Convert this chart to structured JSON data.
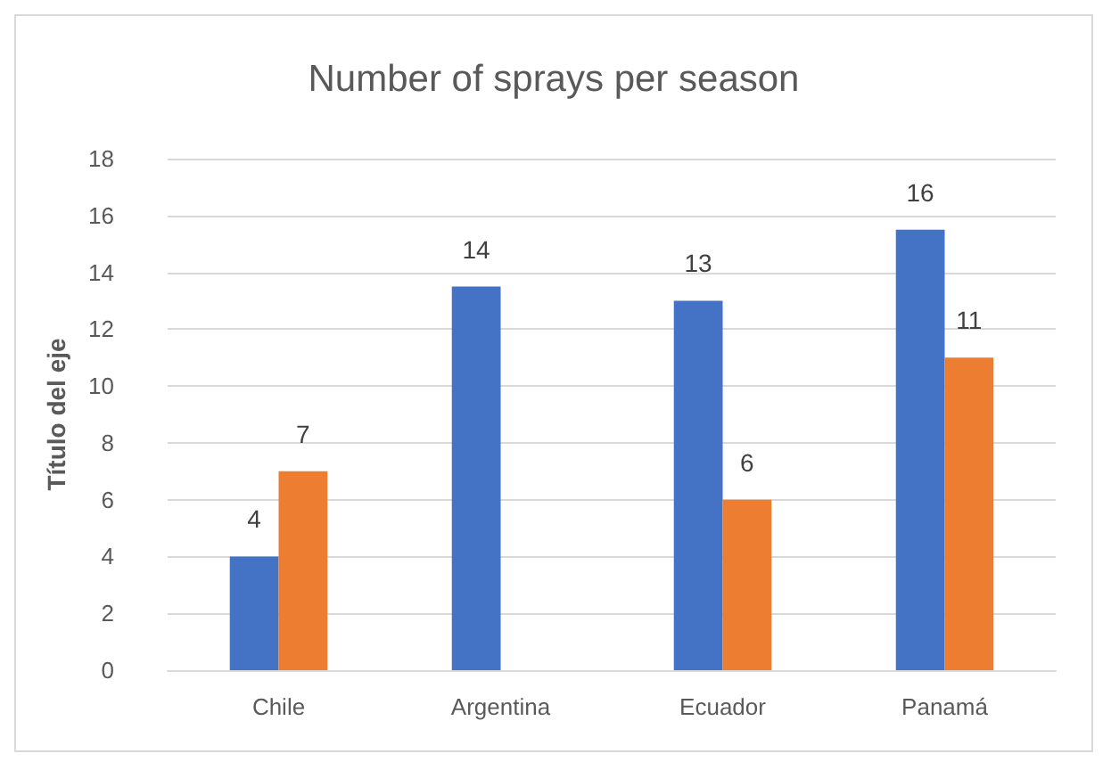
{
  "chart_data": {
    "type": "bar",
    "title": "Number of sprays per season",
    "ylabel": "Título del eje",
    "categories": [
      "Chile",
      "Argentina",
      "Ecuador",
      "Panamá"
    ],
    "series": [
      {
        "color": "#4472c4",
        "values": [
          4,
          13.5,
          13,
          15.5
        ],
        "value_labels": [
          "4",
          "14",
          "13",
          "16"
        ]
      },
      {
        "color": "#ed7d31",
        "values": [
          7,
          null,
          6,
          11
        ],
        "value_labels": [
          "7",
          null,
          "6",
          "11"
        ]
      }
    ],
    "ylim": [
      0,
      18
    ],
    "yticks": [
      0,
      2,
      4,
      6,
      8,
      10,
      12,
      14,
      16,
      18
    ],
    "grid": "y"
  }
}
